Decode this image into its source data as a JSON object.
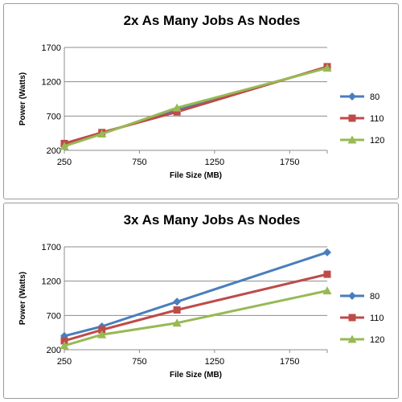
{
  "chart_data": [
    {
      "type": "line",
      "title": "2x As Many Jobs As Nodes",
      "xlabel": "File Size  (MB)",
      "ylabel": "Power (Watts)",
      "xlim": [
        250,
        2000
      ],
      "ylim": [
        200,
        1700
      ],
      "xticks": [
        "250",
        "750",
        "1250",
        "1750"
      ],
      "yticks": [
        "200",
        "700",
        "1200",
        "1700"
      ],
      "x": [
        250,
        500,
        1000,
        2000
      ],
      "legend": "right",
      "grid": "horizontal",
      "series": [
        {
          "name": "80",
          "color": "#4a7ebb",
          "marker": "diamond",
          "values": [
            270,
            450,
            790,
            1410
          ]
        },
        {
          "name": "110",
          "color": "#be4b48",
          "marker": "square",
          "values": [
            300,
            460,
            760,
            1420
          ]
        },
        {
          "name": "120",
          "color": "#98b954",
          "marker": "triangle",
          "values": [
            260,
            440,
            820,
            1400
          ]
        }
      ]
    },
    {
      "type": "line",
      "title": "3x As Many Jobs As Nodes",
      "xlabel": "File Size  (MB)",
      "ylabel": "Power (Watts)",
      "xlim": [
        250,
        2000
      ],
      "ylim": [
        200,
        1700
      ],
      "xticks": [
        "250",
        "750",
        "1250",
        "1750"
      ],
      "yticks": [
        "200",
        "700",
        "1200",
        "1700"
      ],
      "x": [
        250,
        500,
        1000,
        2000
      ],
      "legend": "right",
      "grid": "horizontal",
      "series": [
        {
          "name": "80",
          "color": "#4a7ebb",
          "marker": "diamond",
          "values": [
            400,
            540,
            900,
            1620
          ]
        },
        {
          "name": "110",
          "color": "#be4b48",
          "marker": "square",
          "values": [
            330,
            490,
            780,
            1300
          ]
        },
        {
          "name": "120",
          "color": "#98b954",
          "marker": "triangle",
          "values": [
            260,
            420,
            590,
            1060
          ]
        }
      ]
    }
  ]
}
